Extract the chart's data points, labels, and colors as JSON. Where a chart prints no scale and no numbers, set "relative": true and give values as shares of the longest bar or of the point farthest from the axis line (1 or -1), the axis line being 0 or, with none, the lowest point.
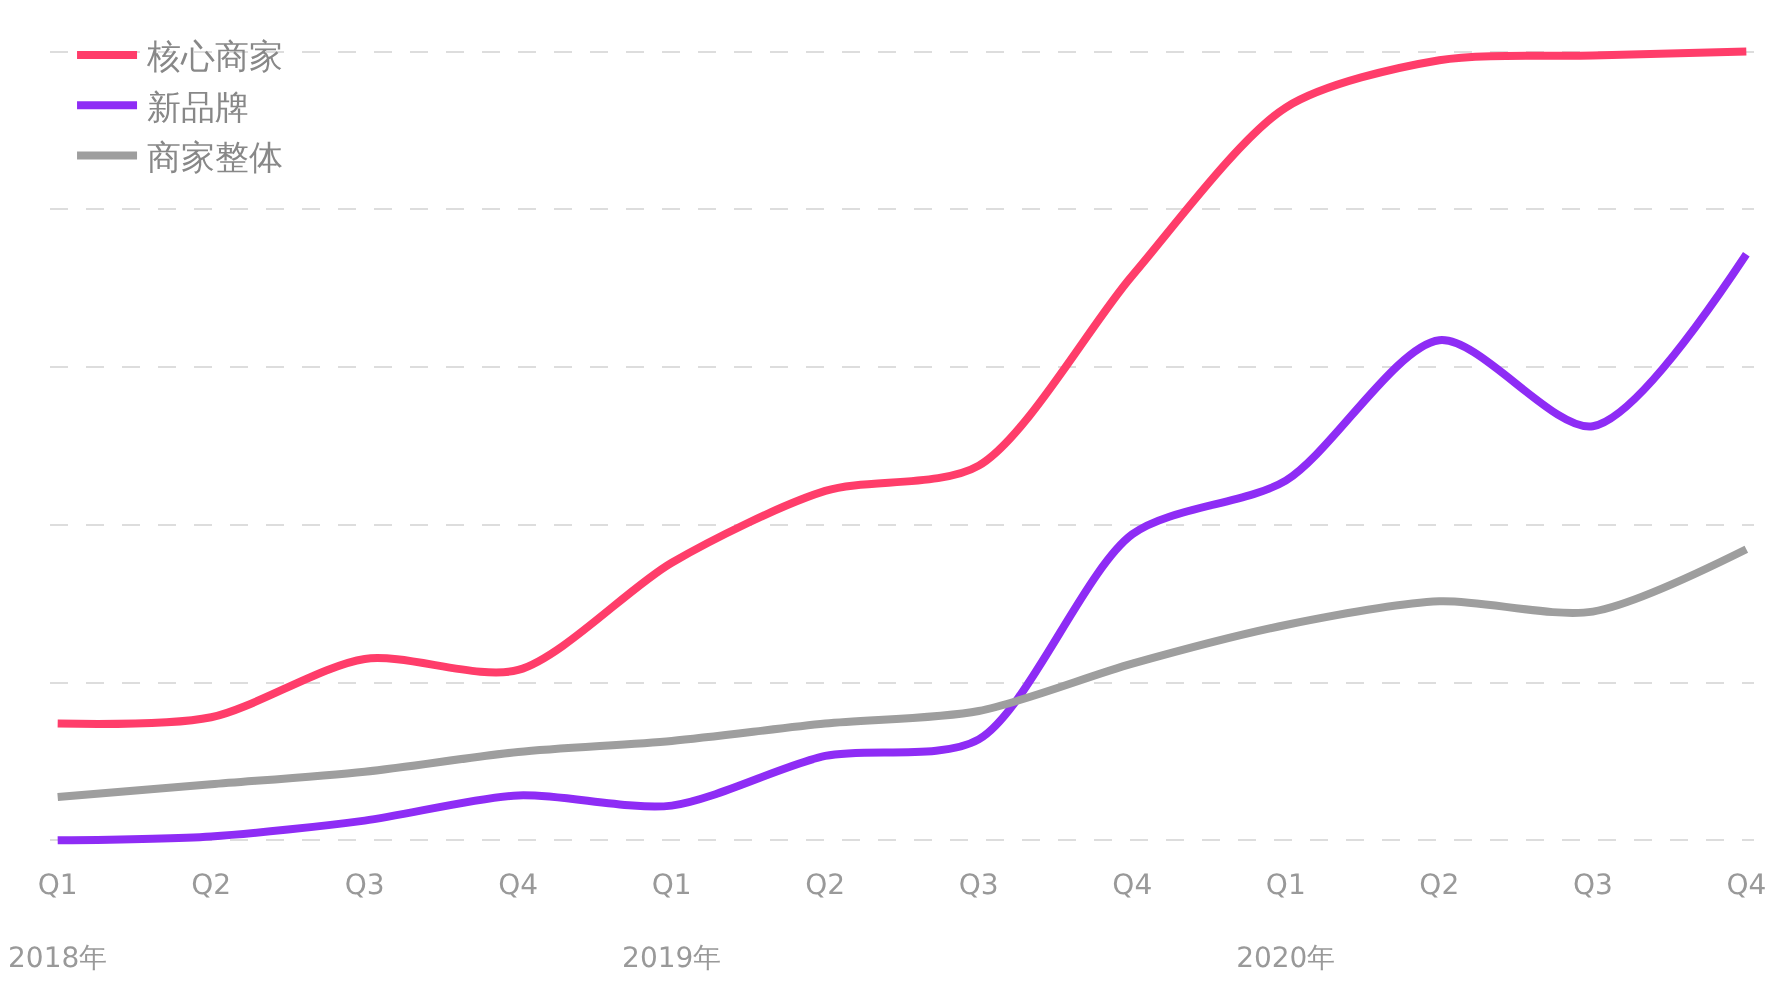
{
  "chart_data": {
    "type": "line",
    "relative": true,
    "grid": "y",
    "legend": "top left",
    "line_style": "solid",
    "marker": "none",
    "categories": [
      "Q1\n2018年",
      "Q2",
      "Q3",
      "Q4",
      "Q1\n2019年",
      "Q2",
      "Q3",
      "Q4",
      "Q1\n2020年",
      "Q2",
      "Q3",
      "Q4"
    ],
    "series": [
      {
        "name": "核心商家",
        "color": "#ff3d6a",
        "values": [
          0.148,
          0.156,
          0.23,
          0.216,
          0.352,
          0.443,
          0.475,
          0.716,
          0.929,
          0.989,
          0.995,
          1
        ]
      },
      {
        "name": "新品牌",
        "color": "#8e2cf5",
        "values": [
          0,
          0.005,
          0.025,
          0.057,
          0.044,
          0.107,
          0.128,
          0.388,
          0.456,
          0.634,
          0.525,
          0.743
        ]
      },
      {
        "name": "商家整体",
        "color": "#9e9e9e",
        "values": [
          0.055,
          0.071,
          0.087,
          0.112,
          0.126,
          0.148,
          0.164,
          0.224,
          0.273,
          0.303,
          0.29,
          0.369
        ]
      }
    ]
  }
}
